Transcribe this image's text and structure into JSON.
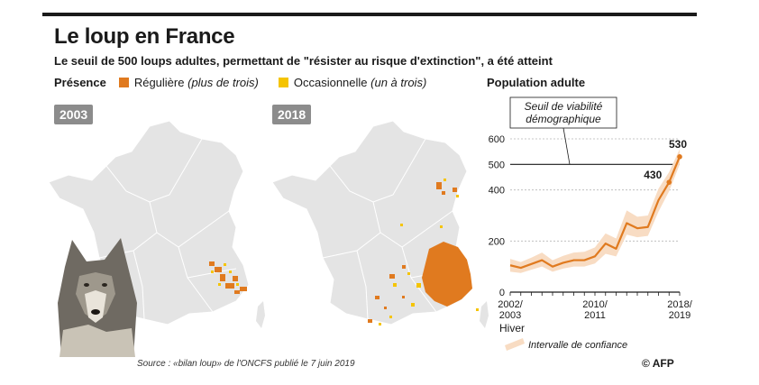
{
  "title": "Le loup en France",
  "subtitle": "Le seuil de 500 loups adultes, permettant de \"résister au risque d'extinction\", a été atteint",
  "legend": {
    "heading": "Présence",
    "regular_label": "Régulière",
    "regular_note": "(plus de trois)",
    "occasional_label": "Occasionnelle",
    "occasional_note": "(un à trois)",
    "regular_color": "#e07a1f",
    "occasional_color": "#f5c400"
  },
  "maps": [
    {
      "year": "2003"
    },
    {
      "year": "2018"
    }
  ],
  "source": "Source : «bilan loup» de l'ONCFS publié le 7 juin 2019",
  "credit": "© AFP",
  "chart_data": {
    "type": "line",
    "title": "Population adulte",
    "x": [
      "2002/2003",
      "2003/2004",
      "2004/2005",
      "2005/2006",
      "2006/2007",
      "2007/2008",
      "2008/2009",
      "2009/2010",
      "2010/2011",
      "2011/2012",
      "2012/2013",
      "2013/2014",
      "2014/2015",
      "2015/2016",
      "2016/2017",
      "2017/2018",
      "2018/2019"
    ],
    "xtick_labels": [
      "2002/\n2003",
      "2010/\n2011",
      "2018/\n2019"
    ],
    "xlabel": "Hiver",
    "series": [
      {
        "values": [
          105,
          95,
          110,
          125,
          100,
          115,
          125,
          125,
          140,
          190,
          170,
          270,
          250,
          255,
          360,
          430,
          530
        ]
      }
    ],
    "confidence_interval": {
      "label": "Intervalle de confiance",
      "low": [
        80,
        75,
        88,
        100,
        80,
        92,
        100,
        100,
        112,
        150,
        140,
        225,
        215,
        220,
        315,
        395,
        500
      ],
      "high": [
        130,
        118,
        135,
        155,
        125,
        142,
        155,
        158,
        175,
        230,
        210,
        320,
        295,
        300,
        405,
        470,
        560
      ]
    },
    "annotations": [
      {
        "x": "2017/2018",
        "value": 430,
        "text": "430"
      },
      {
        "x": "2018/2019",
        "value": 530,
        "text": "530"
      }
    ],
    "threshold": {
      "value": 500,
      "label": "Seuil de viabilité\ndémographique"
    },
    "yticks": [
      0,
      200,
      400,
      500,
      600
    ],
    "ylim": [
      0,
      600
    ],
    "grid": true,
    "line_color": "#e07a1f",
    "band_color": "#f8dcc3"
  }
}
